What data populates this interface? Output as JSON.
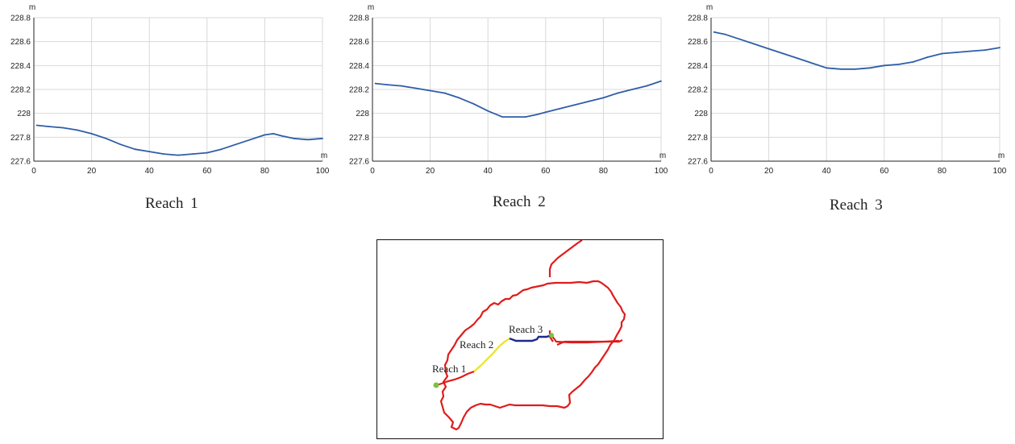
{
  "chart_data": [
    {
      "type": "line",
      "title": "Reach  1",
      "xlabel": "m",
      "ylabel": "m",
      "xlim": [
        0,
        100
      ],
      "ylim": [
        227.6,
        228.8
      ],
      "x_ticks": [
        "0",
        "20",
        "40",
        "60",
        "80",
        "100"
      ],
      "y_ticks": [
        "227.6",
        "227.8",
        "228",
        "228.2",
        "228.4",
        "228.6",
        "228.8"
      ],
      "grid": true,
      "color": "#2f5da8",
      "series": [
        {
          "x": [
            1,
            5,
            10,
            15,
            20,
            25,
            30,
            35,
            40,
            45,
            50,
            55,
            60,
            65,
            70,
            75,
            80,
            83,
            86,
            90,
            95,
            100
          ],
          "y": [
            227.9,
            227.89,
            227.88,
            227.86,
            227.83,
            227.79,
            227.74,
            227.7,
            227.68,
            227.66,
            227.65,
            227.66,
            227.67,
            227.7,
            227.74,
            227.78,
            227.82,
            227.83,
            227.81,
            227.79,
            227.78,
            227.79
          ]
        }
      ]
    },
    {
      "type": "line",
      "title": "Reach  2",
      "xlabel": "m",
      "ylabel": "m",
      "xlim": [
        0,
        100
      ],
      "ylim": [
        227.6,
        228.8
      ],
      "x_ticks": [
        "0",
        "20",
        "40",
        "60",
        "80",
        "100"
      ],
      "y_ticks": [
        "227.6",
        "227.8",
        "228",
        "228.2",
        "228.4",
        "228.6",
        "228.8"
      ],
      "grid": true,
      "color": "#2f5da8",
      "series": [
        {
          "x": [
            1,
            5,
            10,
            15,
            20,
            25,
            30,
            35,
            40,
            45,
            50,
            53,
            57,
            60,
            65,
            70,
            75,
            80,
            85,
            90,
            95,
            100
          ],
          "y": [
            228.25,
            228.24,
            228.23,
            228.21,
            228.19,
            228.17,
            228.13,
            228.08,
            228.02,
            227.97,
            227.97,
            227.97,
            227.99,
            228.01,
            228.04,
            228.07,
            228.1,
            228.13,
            228.17,
            228.2,
            228.23,
            228.27
          ]
        }
      ]
    },
    {
      "type": "line",
      "title": "Reach   3",
      "xlabel": "m",
      "ylabel": "m",
      "xlim": [
        0,
        100
      ],
      "ylim": [
        227.6,
        228.8
      ],
      "x_ticks": [
        "0",
        "20",
        "40",
        "60",
        "80",
        "100"
      ],
      "y_ticks": [
        "227.6",
        "227.8",
        "228",
        "228.2",
        "228.4",
        "228.6",
        "228.8"
      ],
      "grid": true,
      "color": "#2f5da8",
      "series": [
        {
          "x": [
            1,
            5,
            10,
            15,
            20,
            25,
            30,
            35,
            40,
            45,
            50,
            55,
            60,
            65,
            70,
            75,
            80,
            85,
            90,
            95,
            100
          ],
          "y": [
            228.68,
            228.66,
            228.62,
            228.58,
            228.54,
            228.5,
            228.46,
            228.42,
            228.38,
            228.37,
            228.37,
            228.38,
            228.4,
            228.41,
            228.43,
            228.47,
            228.5,
            228.51,
            228.52,
            228.53,
            228.55
          ]
        }
      ]
    }
  ],
  "map": {
    "labels": {
      "reach1": "Reach 1",
      "reach2": "Reach 2",
      "reach3": "Reach 3"
    },
    "colors": {
      "boundary": "#e01b1b",
      "reach1": "#e01b1b",
      "reach2": "#f2e21a",
      "reach3": "#1c2a8a",
      "endpoint": "#7cc242"
    }
  }
}
